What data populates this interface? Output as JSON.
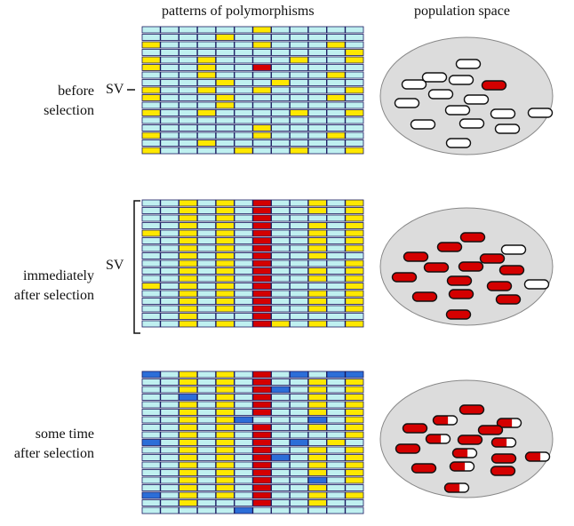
{
  "headers": {
    "patterns": "patterns of polymorphisms",
    "population": "population space"
  },
  "panels": [
    {
      "label_line1": "before",
      "label_line2": "selection",
      "marker": "SV",
      "marker_type": "tick",
      "ellipse_capsules": {
        "white": 14,
        "red": 1,
        "half": 0
      }
    },
    {
      "label_line1": "immediately",
      "label_line2": "after selection",
      "marker": "SV",
      "marker_type": "bracket",
      "ellipse_capsules": {
        "white": 2,
        "red": 14,
        "half": 0
      }
    },
    {
      "label_line1": "some time",
      "label_line2": "after selection",
      "marker": "",
      "marker_type": "none",
      "ellipse_capsules": {
        "white": 0,
        "red": 8,
        "half": 8
      }
    }
  ],
  "colors": {
    "cell_background": "#bff0f0",
    "cell_border": "#1a1a60",
    "polymorphism": "#ffe800",
    "selected_variant": "#d40000",
    "new_mutation": "#2c6ed8",
    "population_space": "#dcdcdc",
    "capsule_white": "#ffffff",
    "capsule_red": "#d40000"
  },
  "legend_icons": [
    "haplotype-row",
    "capsule-individual"
  ]
}
